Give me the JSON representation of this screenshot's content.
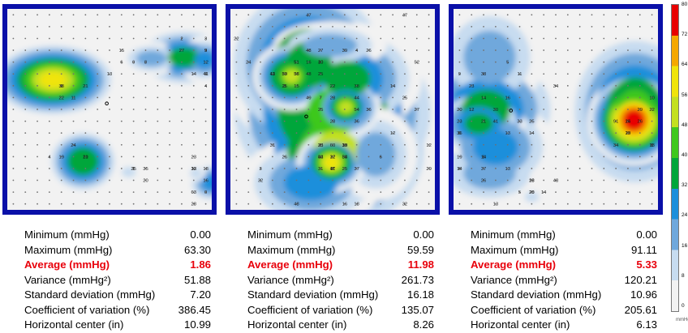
{
  "chart_data": {
    "type": "heatmap",
    "grid": {
      "cols": 17,
      "rows": 17
    },
    "scale": {
      "min": 0,
      "max": 80,
      "ticks": [
        "80",
        "72",
        "64",
        "56",
        "48",
        "40",
        "32",
        "24",
        "16",
        "8",
        "0"
      ],
      "unit": "mmHg"
    },
    "palette": [
      "#f2f2f2",
      "#c7dcf0",
      "#6fa8dc",
      "#1c8fdb",
      "#00a63a",
      "#3ec81e",
      "#c3e020",
      "#f0e40a",
      "#f5a800",
      "#e80000"
    ],
    "panels": [
      {
        "grid_labels": [
          "0",
          "0",
          "2",
          "3",
          "4",
          "1",
          "0",
          "12",
          "21",
          "13",
          "27",
          "41",
          "19",
          "35",
          "28",
          "33",
          "38",
          "6",
          "3",
          "4",
          "21",
          "25",
          "63",
          "23",
          "11",
          "8",
          "9",
          "14",
          "24",
          "20",
          "16",
          "18",
          "22",
          "15",
          "9",
          "12",
          "10"
        ],
        "hot": [
          {
            "c": 3.3,
            "r": 5.5,
            "v": 62,
            "rx": 1.5,
            "ry": 0.9
          },
          {
            "c": 11.5,
            "r": 3.7,
            "v": 20,
            "rx": 1.7,
            "ry": 0.9
          },
          {
            "c": 14.2,
            "r": 3.6,
            "v": 38,
            "rx": 1.8,
            "ry": 1.1
          },
          {
            "c": 15.9,
            "r": 3.8,
            "v": 30,
            "rx": 1.1,
            "ry": 1.0
          },
          {
            "c": 5.8,
            "r": 12.4,
            "v": 42,
            "rx": 1.1,
            "ry": 1.0
          },
          {
            "c": 9.6,
            "r": 13.3,
            "v": 12,
            "rx": 0.8,
            "ry": 0.6
          },
          {
            "c": 16.4,
            "r": 14.2,
            "v": 30,
            "rx": 1.0,
            "ry": 0.9
          },
          {
            "c": 15.2,
            "r": 13.4,
            "v": 14,
            "rx": 0.7,
            "ry": 0.6
          }
        ],
        "center": {
          "c": 10.99,
          "r": 7.5
        },
        "stats": [
          {
            "label": "Minimum (mmHg)",
            "value": "0.00"
          },
          {
            "label": "Maximum (mmHg)",
            "value": "63.30"
          },
          {
            "label": "Average (mmHg)",
            "value": "1.86",
            "highlight": true
          },
          {
            "label": "Variance (mmHg²)",
            "value": "51.88"
          },
          {
            "label": "Standard deviation (mmHg)",
            "value": "7.20"
          },
          {
            "label": "Coefficient of variation (%)",
            "value": "386.45"
          },
          {
            "label": "Horizontal center (in)",
            "value": "10.99"
          }
        ]
      },
      {
        "grid_labels": [
          "10",
          "3",
          "4",
          "6",
          "7",
          "13",
          "7",
          "26",
          "29",
          "24",
          "48",
          "15",
          "16",
          "25",
          "28",
          "60",
          "41",
          "32",
          "27",
          "22",
          "51",
          "38",
          "49",
          "39",
          "36",
          "23",
          "34",
          "48",
          "44",
          "52",
          "51",
          "55",
          "54",
          "43",
          "36",
          "37",
          "12",
          "16",
          "42",
          "47",
          "48",
          "33",
          "14",
          "31",
          "38",
          "58",
          "54",
          "37",
          "18",
          "47",
          "25",
          "59",
          "26",
          "25",
          "28",
          "39",
          "31",
          "35",
          "32",
          "22",
          "30",
          "25",
          "27",
          "12",
          "25",
          "10",
          "17",
          "3",
          "12",
          "11"
        ],
        "hot": [
          {
            "c": 6.0,
            "r": 4.2,
            "v": 42,
            "rx": 2.6,
            "ry": 2.6
          },
          {
            "c": 4.6,
            "r": 5.2,
            "v": 58,
            "rx": 0.9,
            "ry": 0.8
          },
          {
            "c": 9.2,
            "r": 5.4,
            "v": 36,
            "rx": 2.6,
            "ry": 2.0
          },
          {
            "c": 8.0,
            "r": 8.2,
            "v": 50,
            "rx": 2.9,
            "ry": 2.6
          },
          {
            "c": 9.1,
            "r": 7.8,
            "v": 57,
            "rx": 0.8,
            "ry": 0.7
          },
          {
            "c": 8.3,
            "r": 11.5,
            "v": 56,
            "rx": 2.6,
            "ry": 2.3
          },
          {
            "c": 7.9,
            "r": 12.5,
            "v": 59,
            "rx": 0.8,
            "ry": 0.7
          },
          {
            "c": 6.2,
            "r": 14.2,
            "v": 32,
            "rx": 3.0,
            "ry": 2.0
          },
          {
            "c": 11.6,
            "r": 11.8,
            "v": 24,
            "rx": 2.2,
            "ry": 2.5
          },
          {
            "c": 7.8,
            "r": 2.6,
            "v": 18,
            "rx": 3.0,
            "ry": 1.3
          }
        ],
        "center": {
          "c": 8.26,
          "r": 8.6
        },
        "stats": [
          {
            "label": "Minimum (mmHg)",
            "value": "0.00"
          },
          {
            "label": "Maximum (mmHg)",
            "value": "59.59"
          },
          {
            "label": "Average (mmHg)",
            "value": "11.98",
            "highlight": true
          },
          {
            "label": "Variance (mmHg²)",
            "value": "261.73"
          },
          {
            "label": "Standard deviation (mmHg)",
            "value": "16.18"
          },
          {
            "label": "Coefficient of variation (%)",
            "value": "135.07"
          },
          {
            "label": "Horizontal center (in)",
            "value": "8.26"
          }
        ]
      },
      {
        "grid_labels": [
          "5",
          "23",
          "14",
          "18",
          "6",
          "29",
          "13",
          "5",
          "34",
          "6",
          "21",
          "13",
          "19",
          "10",
          "34",
          "25",
          "11",
          "20",
          "16",
          "13",
          "37",
          "22",
          "29",
          "28",
          "14",
          "12",
          "41",
          "26",
          "35",
          "13",
          "15",
          "20",
          "30",
          "9",
          "25",
          "14",
          "6",
          "8",
          "91",
          "48",
          "38",
          "23",
          "13",
          "14",
          "33",
          "26",
          "24",
          "14"
        ],
        "hot": [
          {
            "c": 2.5,
            "r": 3.6,
            "v": 22,
            "rx": 2.9,
            "ry": 3.0
          },
          {
            "c": 2.2,
            "r": 8.0,
            "v": 38,
            "rx": 2.7,
            "ry": 2.2
          },
          {
            "c": 1.6,
            "r": 9.2,
            "v": 40,
            "rx": 1.6,
            "ry": 1.2
          },
          {
            "c": 3.0,
            "r": 11.2,
            "v": 32,
            "rx": 2.5,
            "ry": 2.0
          },
          {
            "c": 2.5,
            "r": 13.4,
            "v": 20,
            "rx": 2.9,
            "ry": 1.8
          },
          {
            "c": 14.6,
            "r": 8.2,
            "v": 45,
            "rx": 2.1,
            "ry": 2.5
          },
          {
            "c": 14.5,
            "r": 8.9,
            "v": 88,
            "rx": 0.8,
            "ry": 0.8
          },
          {
            "c": 6.0,
            "r": 15.4,
            "v": 12,
            "rx": 0.8,
            "ry": 0.6
          }
        ],
        "center": {
          "c": 6.13,
          "r": 8.1
        },
        "stats": [
          {
            "label": "Minimum (mmHg)",
            "value": "0.00"
          },
          {
            "label": "Maximum (mmHg)",
            "value": "91.11"
          },
          {
            "label": "Average (mmHg)",
            "value": "5.33",
            "highlight": true
          },
          {
            "label": "Variance (mmHg²)",
            "value": "120.21"
          },
          {
            "label": "Standard deviation (mmHg)",
            "value": "10.96"
          },
          {
            "label": "Coefficient of variation (%)",
            "value": "205.61"
          },
          {
            "label": "Horizontal center (in)",
            "value": "6.13"
          }
        ]
      }
    ]
  }
}
